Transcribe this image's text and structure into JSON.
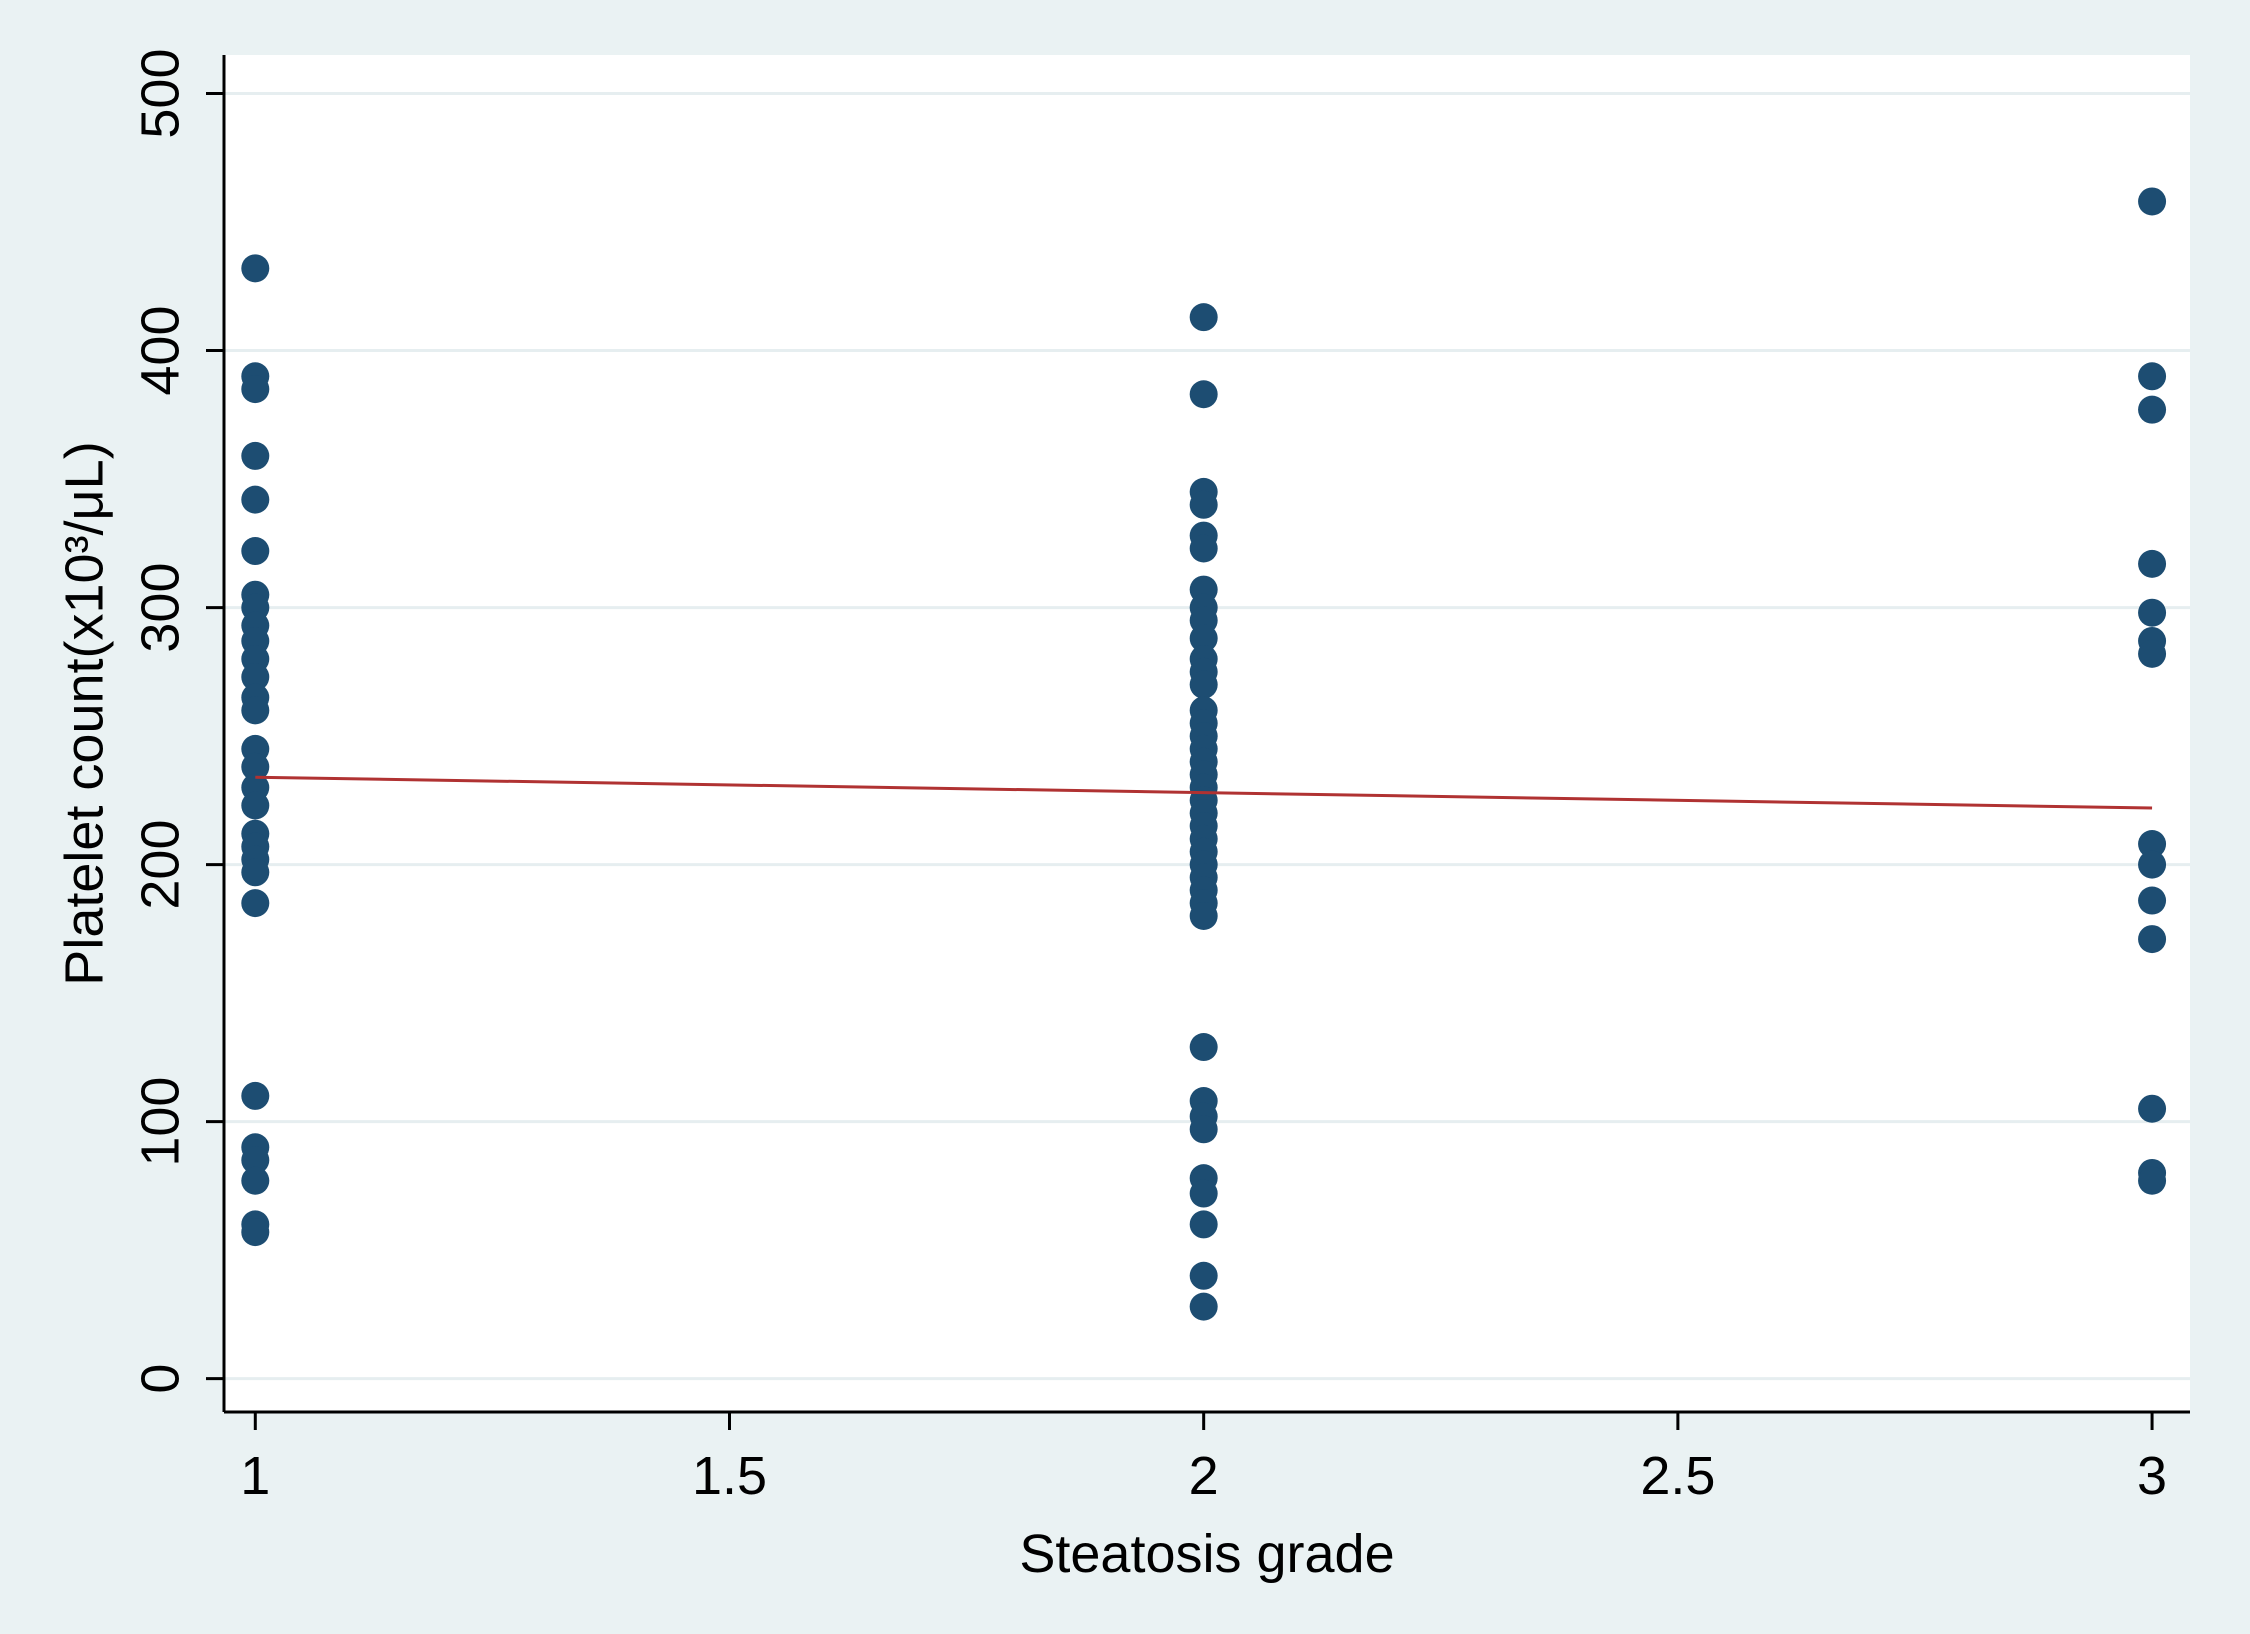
{
  "chart_data": {
    "type": "scatter",
    "xlabel": "Steatosis grade",
    "ylabel": "Platelet count(x10³/μL)",
    "xlim": [
      0.967,
      3.04
    ],
    "ylim": [
      -13,
      515
    ],
    "x_ticks": [
      1,
      1.5,
      2,
      2.5,
      3
    ],
    "x_tick_labels": [
      "1",
      "1.5",
      "2",
      "2.5",
      "3"
    ],
    "y_ticks": [
      0,
      100,
      200,
      300,
      400,
      500
    ],
    "y_tick_labels": [
      "0",
      "100",
      "200",
      "300",
      "400",
      "500"
    ],
    "grid": "horizontal",
    "legend": "none",
    "colors": {
      "background": "#eaf2f3",
      "plot_area": "#ffffff",
      "gridline": "#e6eef0",
      "marker": "#1d4d72",
      "fit_line": "#b03232",
      "axis": "#000000"
    },
    "series": [
      {
        "type": "scatter",
        "points": [
          {
            "x": 1,
            "y": 432
          },
          {
            "x": 1,
            "y": 390
          },
          {
            "x": 1,
            "y": 385
          },
          {
            "x": 1,
            "y": 359
          },
          {
            "x": 1,
            "y": 342
          },
          {
            "x": 1,
            "y": 322
          },
          {
            "x": 1,
            "y": 305
          },
          {
            "x": 1,
            "y": 300
          },
          {
            "x": 1,
            "y": 293
          },
          {
            "x": 1,
            "y": 287
          },
          {
            "x": 1,
            "y": 280
          },
          {
            "x": 1,
            "y": 273
          },
          {
            "x": 1,
            "y": 265
          },
          {
            "x": 1,
            "y": 260
          },
          {
            "x": 1,
            "y": 245
          },
          {
            "x": 1,
            "y": 238
          },
          {
            "x": 1,
            "y": 230
          },
          {
            "x": 1,
            "y": 223
          },
          {
            "x": 1,
            "y": 212
          },
          {
            "x": 1,
            "y": 207
          },
          {
            "x": 1,
            "y": 202
          },
          {
            "x": 1,
            "y": 197
          },
          {
            "x": 1,
            "y": 185
          },
          {
            "x": 1,
            "y": 110
          },
          {
            "x": 1,
            "y": 90
          },
          {
            "x": 1,
            "y": 85
          },
          {
            "x": 1,
            "y": 77
          },
          {
            "x": 1,
            "y": 60
          },
          {
            "x": 1,
            "y": 57
          },
          {
            "x": 2,
            "y": 413
          },
          {
            "x": 2,
            "y": 383
          },
          {
            "x": 2,
            "y": 345
          },
          {
            "x": 2,
            "y": 340
          },
          {
            "x": 2,
            "y": 328
          },
          {
            "x": 2,
            "y": 323
          },
          {
            "x": 2,
            "y": 307
          },
          {
            "x": 2,
            "y": 300
          },
          {
            "x": 2,
            "y": 295
          },
          {
            "x": 2,
            "y": 288
          },
          {
            "x": 2,
            "y": 280
          },
          {
            "x": 2,
            "y": 275
          },
          {
            "x": 2,
            "y": 270
          },
          {
            "x": 2,
            "y": 260
          },
          {
            "x": 2,
            "y": 255
          },
          {
            "x": 2,
            "y": 250
          },
          {
            "x": 2,
            "y": 245
          },
          {
            "x": 2,
            "y": 240
          },
          {
            "x": 2,
            "y": 235
          },
          {
            "x": 2,
            "y": 230
          },
          {
            "x": 2,
            "y": 225
          },
          {
            "x": 2,
            "y": 220
          },
          {
            "x": 2,
            "y": 215
          },
          {
            "x": 2,
            "y": 210
          },
          {
            "x": 2,
            "y": 205
          },
          {
            "x": 2,
            "y": 200
          },
          {
            "x": 2,
            "y": 195
          },
          {
            "x": 2,
            "y": 190
          },
          {
            "x": 2,
            "y": 185
          },
          {
            "x": 2,
            "y": 180
          },
          {
            "x": 2,
            "y": 129
          },
          {
            "x": 2,
            "y": 108
          },
          {
            "x": 2,
            "y": 102
          },
          {
            "x": 2,
            "y": 97
          },
          {
            "x": 2,
            "y": 78
          },
          {
            "x": 2,
            "y": 72
          },
          {
            "x": 2,
            "y": 60
          },
          {
            "x": 2,
            "y": 40
          },
          {
            "x": 2,
            "y": 28
          },
          {
            "x": 3,
            "y": 458
          },
          {
            "x": 3,
            "y": 390
          },
          {
            "x": 3,
            "y": 377
          },
          {
            "x": 3,
            "y": 317
          },
          {
            "x": 3,
            "y": 298
          },
          {
            "x": 3,
            "y": 287
          },
          {
            "x": 3,
            "y": 282
          },
          {
            "x": 3,
            "y": 208
          },
          {
            "x": 3,
            "y": 200
          },
          {
            "x": 3,
            "y": 186
          },
          {
            "x": 3,
            "y": 171
          },
          {
            "x": 3,
            "y": 105
          },
          {
            "x": 3,
            "y": 80
          },
          {
            "x": 3,
            "y": 77
          }
        ]
      },
      {
        "type": "line",
        "points": [
          {
            "x": 1,
            "y": 234
          },
          {
            "x": 3,
            "y": 222
          }
        ]
      }
    ]
  }
}
